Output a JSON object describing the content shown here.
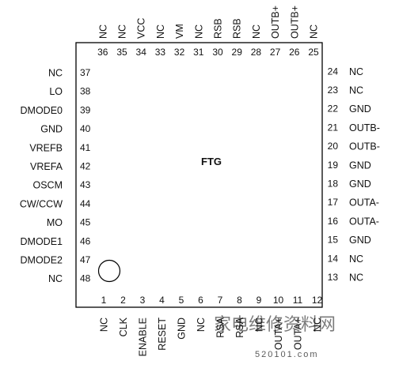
{
  "chip": {
    "label": "FTG"
  },
  "pins": {
    "bottom": [
      {
        "num": "1",
        "name": "NC"
      },
      {
        "num": "2",
        "name": "CLK"
      },
      {
        "num": "3",
        "name": "ENABLE"
      },
      {
        "num": "4",
        "name": "RESET"
      },
      {
        "num": "5",
        "name": "GND"
      },
      {
        "num": "6",
        "name": "NC"
      },
      {
        "num": "7",
        "name": "RSA"
      },
      {
        "num": "8",
        "name": "RSA"
      },
      {
        "num": "9",
        "name": "NC"
      },
      {
        "num": "10",
        "name": "OUTA+"
      },
      {
        "num": "11",
        "name": "OUTA+"
      },
      {
        "num": "12",
        "name": "NC"
      }
    ],
    "right": [
      {
        "num": "13",
        "name": "NC"
      },
      {
        "num": "14",
        "name": "NC"
      },
      {
        "num": "15",
        "name": "GND"
      },
      {
        "num": "16",
        "name": "OUTA-"
      },
      {
        "num": "17",
        "name": "OUTA-"
      },
      {
        "num": "18",
        "name": "GND"
      },
      {
        "num": "19",
        "name": "GND"
      },
      {
        "num": "20",
        "name": "OUTB-"
      },
      {
        "num": "21",
        "name": "OUTB-"
      },
      {
        "num": "22",
        "name": "GND"
      },
      {
        "num": "23",
        "name": "NC"
      },
      {
        "num": "24",
        "name": "NC"
      }
    ],
    "top": [
      {
        "num": "25",
        "name": "NC"
      },
      {
        "num": "26",
        "name": "OUTB+"
      },
      {
        "num": "27",
        "name": "OUTB+"
      },
      {
        "num": "28",
        "name": "NC"
      },
      {
        "num": "29",
        "name": "RSB"
      },
      {
        "num": "30",
        "name": "RSB"
      },
      {
        "num": "31",
        "name": "NC"
      },
      {
        "num": "32",
        "name": "VM"
      },
      {
        "num": "33",
        "name": "NC"
      },
      {
        "num": "34",
        "name": "VCC"
      },
      {
        "num": "35",
        "name": "NC"
      },
      {
        "num": "36",
        "name": "NC"
      }
    ],
    "left": [
      {
        "num": "37",
        "name": "NC"
      },
      {
        "num": "38",
        "name": "LO"
      },
      {
        "num": "39",
        "name": "DMODE0"
      },
      {
        "num": "40",
        "name": "GND"
      },
      {
        "num": "41",
        "name": "VREFB"
      },
      {
        "num": "42",
        "name": "VREFA"
      },
      {
        "num": "43",
        "name": "OSCM"
      },
      {
        "num": "44",
        "name": "CW/CCW"
      },
      {
        "num": "45",
        "name": "MO"
      },
      {
        "num": "46",
        "name": "DMODE1"
      },
      {
        "num": "47",
        "name": "DMODE2"
      },
      {
        "num": "48",
        "name": "NC"
      }
    ]
  },
  "watermark": {
    "text": "家电维修资料网",
    "url": "520101.com"
  }
}
